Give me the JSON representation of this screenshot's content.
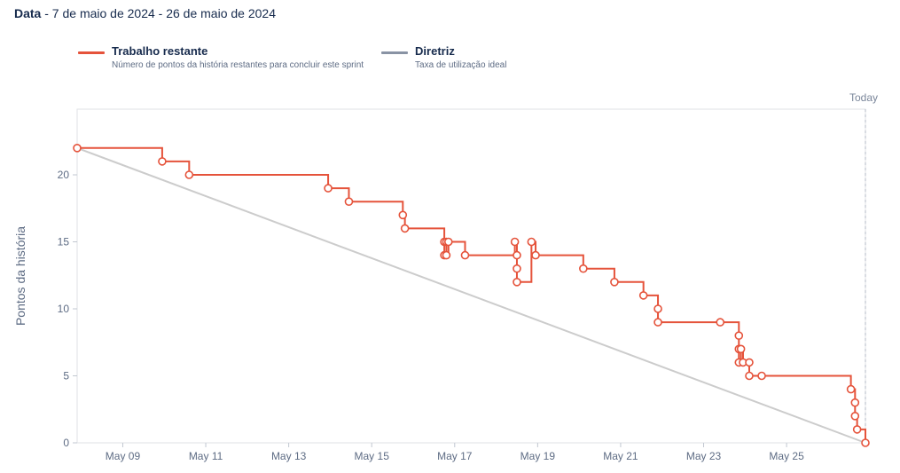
{
  "header": {
    "label": "Data",
    "range": " - 7 de maio de 2024 - 26 de maio de 2024"
  },
  "legend": [
    {
      "name": "Trabalho restante",
      "desc": "Número de pontos da história restantes para concluir este sprint",
      "color": "#e5533b"
    },
    {
      "name": "Diretriz",
      "desc": "Taxa de utilização ideal",
      "color": "#8993a4"
    }
  ],
  "chart_data": {
    "type": "line",
    "ylabel": "Pontos da história",
    "today_label": "Today",
    "x_ticks": [
      "May 09",
      "May 11",
      "May 13",
      "May 15",
      "May 17",
      "May 19",
      "May 21",
      "May 23",
      "May 25"
    ],
    "x_tick_days": [
      9,
      11,
      13,
      15,
      17,
      19,
      21,
      23,
      25
    ],
    "y_ticks": [
      0,
      5,
      10,
      15,
      20
    ],
    "xlim_days": [
      7.9,
      26.9
    ],
    "ylim": [
      0,
      25
    ],
    "guideline": {
      "name": "Diretriz",
      "start": [
        7.9,
        22
      ],
      "end": [
        26.9,
        0
      ],
      "color": "#cccccc"
    },
    "series": [
      {
        "name": "Trabalho restante",
        "color": "#e5533b",
        "points": [
          [
            7.9,
            22
          ],
          [
            9.95,
            21
          ],
          [
            10.6,
            20
          ],
          [
            13.95,
            19
          ],
          [
            14.45,
            18
          ],
          [
            15.75,
            17
          ],
          [
            15.8,
            16
          ],
          [
            16.75,
            15
          ],
          [
            16.75,
            14
          ],
          [
            16.8,
            15
          ],
          [
            16.8,
            14
          ],
          [
            16.85,
            15
          ],
          [
            17.25,
            14
          ],
          [
            18.85,
            15
          ],
          [
            18.95,
            14
          ],
          [
            18.45,
            15
          ],
          [
            18.5,
            14
          ],
          [
            18.5,
            13
          ],
          [
            18.5,
            12
          ],
          [
            20.1,
            13
          ],
          [
            20.85,
            12
          ],
          [
            21.55,
            11
          ],
          [
            21.9,
            10
          ],
          [
            21.9,
            9
          ],
          [
            23.4,
            9
          ],
          [
            23.85,
            8
          ],
          [
            23.85,
            7
          ],
          [
            23.9,
            7
          ],
          [
            23.85,
            6
          ],
          [
            23.95,
            6
          ],
          [
            24.1,
            6
          ],
          [
            24.1,
            5
          ],
          [
            24.4,
            5
          ],
          [
            26.55,
            4
          ],
          [
            26.65,
            3
          ],
          [
            26.65,
            2
          ],
          [
            26.7,
            1
          ],
          [
            26.9,
            0
          ]
        ]
      }
    ]
  }
}
